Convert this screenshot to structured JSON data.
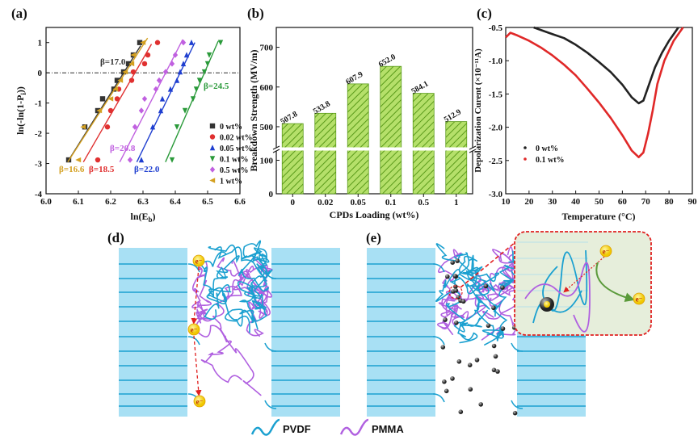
{
  "panels": {
    "a": "(a)",
    "b": "(b)",
    "c": "(c)",
    "d": "(d)",
    "e": "(e)"
  },
  "chart_data": [
    {
      "panel": "a",
      "type": "scatter",
      "xlabel": {
        "main": "ln(E",
        "sub": "b",
        "end": ")"
      },
      "ylabel": {
        "main": "ln(-ln(1-P",
        "sub": "i",
        "end": "))"
      },
      "xlim": [
        6.0,
        6.6
      ],
      "ylim": [
        -4,
        1.5
      ],
      "xticks": [
        "6.0",
        "6.1",
        "6.2",
        "6.3",
        "6.4",
        "6.5",
        "6.6"
      ],
      "yticks": [
        "1",
        "0",
        "-1",
        "-2",
        "-3",
        "-4"
      ],
      "reference_line_y": 0,
      "legend": "bottom-right",
      "y_levels": [
        -2.88,
        -1.79,
        -1.25,
        -0.86,
        -0.54,
        -0.25,
        0.03,
        0.3,
        0.59,
        1.0
      ],
      "series": [
        {
          "name": "0 wt%",
          "marker": "square",
          "color": "#333333",
          "x": [
            6.07,
            6.12,
            6.16,
            6.175,
            6.21,
            6.22,
            6.24,
            6.255,
            6.27,
            6.29
          ],
          "beta": "β=17.0",
          "fit_x_at_y0": 6.24,
          "fit_slope": 17.0
        },
        {
          "name": "0.02 wt%",
          "marker": "circle",
          "color": "#e03030",
          "x": [
            6.16,
            6.19,
            6.2,
            6.22,
            6.225,
            6.265,
            6.27,
            6.305,
            6.315,
            6.345
          ],
          "beta": "β=18.5",
          "fit_x_at_y0": 6.275,
          "fit_slope": 18.5
        },
        {
          "name": "0.05 wt%",
          "marker": "triangle-up",
          "color": "#1f3fd0",
          "x": [
            6.295,
            6.33,
            6.355,
            6.36,
            6.385,
            6.405,
            6.415,
            6.425,
            6.435,
            6.45
          ],
          "beta": "β=22.0",
          "fit_x_at_y0": 6.415,
          "fit_slope": 22.0
        },
        {
          "name": "0.1 wt%",
          "marker": "triangle-down",
          "color": "#2a9a3a",
          "x": [
            6.39,
            6.405,
            6.43,
            6.455,
            6.465,
            6.475,
            6.49,
            6.5,
            6.505,
            6.54
          ],
          "beta": "β=24.5",
          "fit_x_at_y0": 6.49,
          "fit_slope": 24.5
        },
        {
          "name": "0.5 wt%",
          "marker": "diamond",
          "color": "#c060e0",
          "x": [
            6.26,
            6.275,
            6.295,
            6.305,
            6.34,
            6.35,
            6.37,
            6.39,
            6.4,
            6.425
          ],
          "beta": "β=20.8",
          "fit_x_at_y0": 6.37,
          "fit_slope": 20.8
        },
        {
          "name": "1 wt%",
          "marker": "triangle-left",
          "color": "#d4a020",
          "x": [
            6.1,
            6.115,
            6.165,
            6.2,
            6.215,
            6.23,
            6.245,
            6.265,
            6.27,
            6.3
          ],
          "beta": "β=16.6",
          "fit_x_at_y0": 6.245,
          "fit_slope": 16.6
        }
      ]
    },
    {
      "panel": "b",
      "type": "bar",
      "categories": [
        "0",
        "0.02",
        "0.05",
        "0.1",
        "0.5",
        "1"
      ],
      "values": [
        507.8,
        533.8,
        607.9,
        652.0,
        584.1,
        512.9
      ],
      "data_labels": [
        "507.8",
        "533.8",
        "607.9",
        "652.0",
        "584.1",
        "512.9"
      ],
      "xlabel": "CPDs Loading (wt%)",
      "ylabel": "Breakdown Strength (MV/m)",
      "ylim": [
        0,
        750
      ],
      "axis_break": [
        135,
        445
      ],
      "yticks": [
        "0",
        "100",
        "500",
        "600",
        "700"
      ],
      "bar_color": "#b5e06a",
      "hatch_color": "#5a9a1a"
    },
    {
      "panel": "c",
      "type": "line",
      "xlabel": "Temperature (°C)",
      "ylabel": "Depolarization Curent (×10⁻¹¹A)",
      "xlim": [
        10,
        90
      ],
      "ylim": [
        -3.0,
        -0.5
      ],
      "xticks": [
        "10",
        "20",
        "30",
        "40",
        "50",
        "60",
        "70",
        "80",
        "90"
      ],
      "yticks": [
        "-0.5",
        "-1.0",
        "-1.5",
        "-2.0",
        "-2.5",
        "-3.0"
      ],
      "legend": "bottom-left",
      "series": [
        {
          "name": "0 wt%",
          "color": "#222222",
          "x": [
            22,
            30,
            35,
            40,
            45,
            50,
            55,
            60,
            64,
            67,
            69,
            71,
            74,
            77,
            80,
            84
          ],
          "y": [
            -0.5,
            -0.6,
            -0.66,
            -0.76,
            -0.88,
            -1.02,
            -1.17,
            -1.36,
            -1.55,
            -1.64,
            -1.6,
            -1.4,
            -1.1,
            -0.88,
            -0.7,
            -0.5
          ]
        },
        {
          "name": "0.1 wt%",
          "color": "#e02828",
          "x": [
            10,
            12,
            15,
            20,
            25,
            30,
            35,
            40,
            45,
            50,
            55,
            60,
            64,
            67,
            69,
            71,
            73,
            75,
            78,
            82,
            86
          ],
          "y": [
            -0.65,
            -0.58,
            -0.62,
            -0.7,
            -0.8,
            -0.92,
            -1.06,
            -1.22,
            -1.42,
            -1.63,
            -1.86,
            -2.12,
            -2.35,
            -2.45,
            -2.38,
            -2.1,
            -1.75,
            -1.35,
            -1.0,
            -0.7,
            -0.5
          ]
        }
      ]
    }
  ],
  "diagram": {
    "electron_label": "e⁻",
    "legend": {
      "pvdf": "PVDF",
      "pmma": "PMMA"
    },
    "colors": {
      "lamella": "#a8e0f4",
      "lamella_line": "#1a9fd0",
      "pvdf": "#1aa0d0",
      "pmma": "#b060e0",
      "electron": "#f5d800",
      "trap_path": "#e02020",
      "inset_bg": "#e6eedb"
    }
  }
}
